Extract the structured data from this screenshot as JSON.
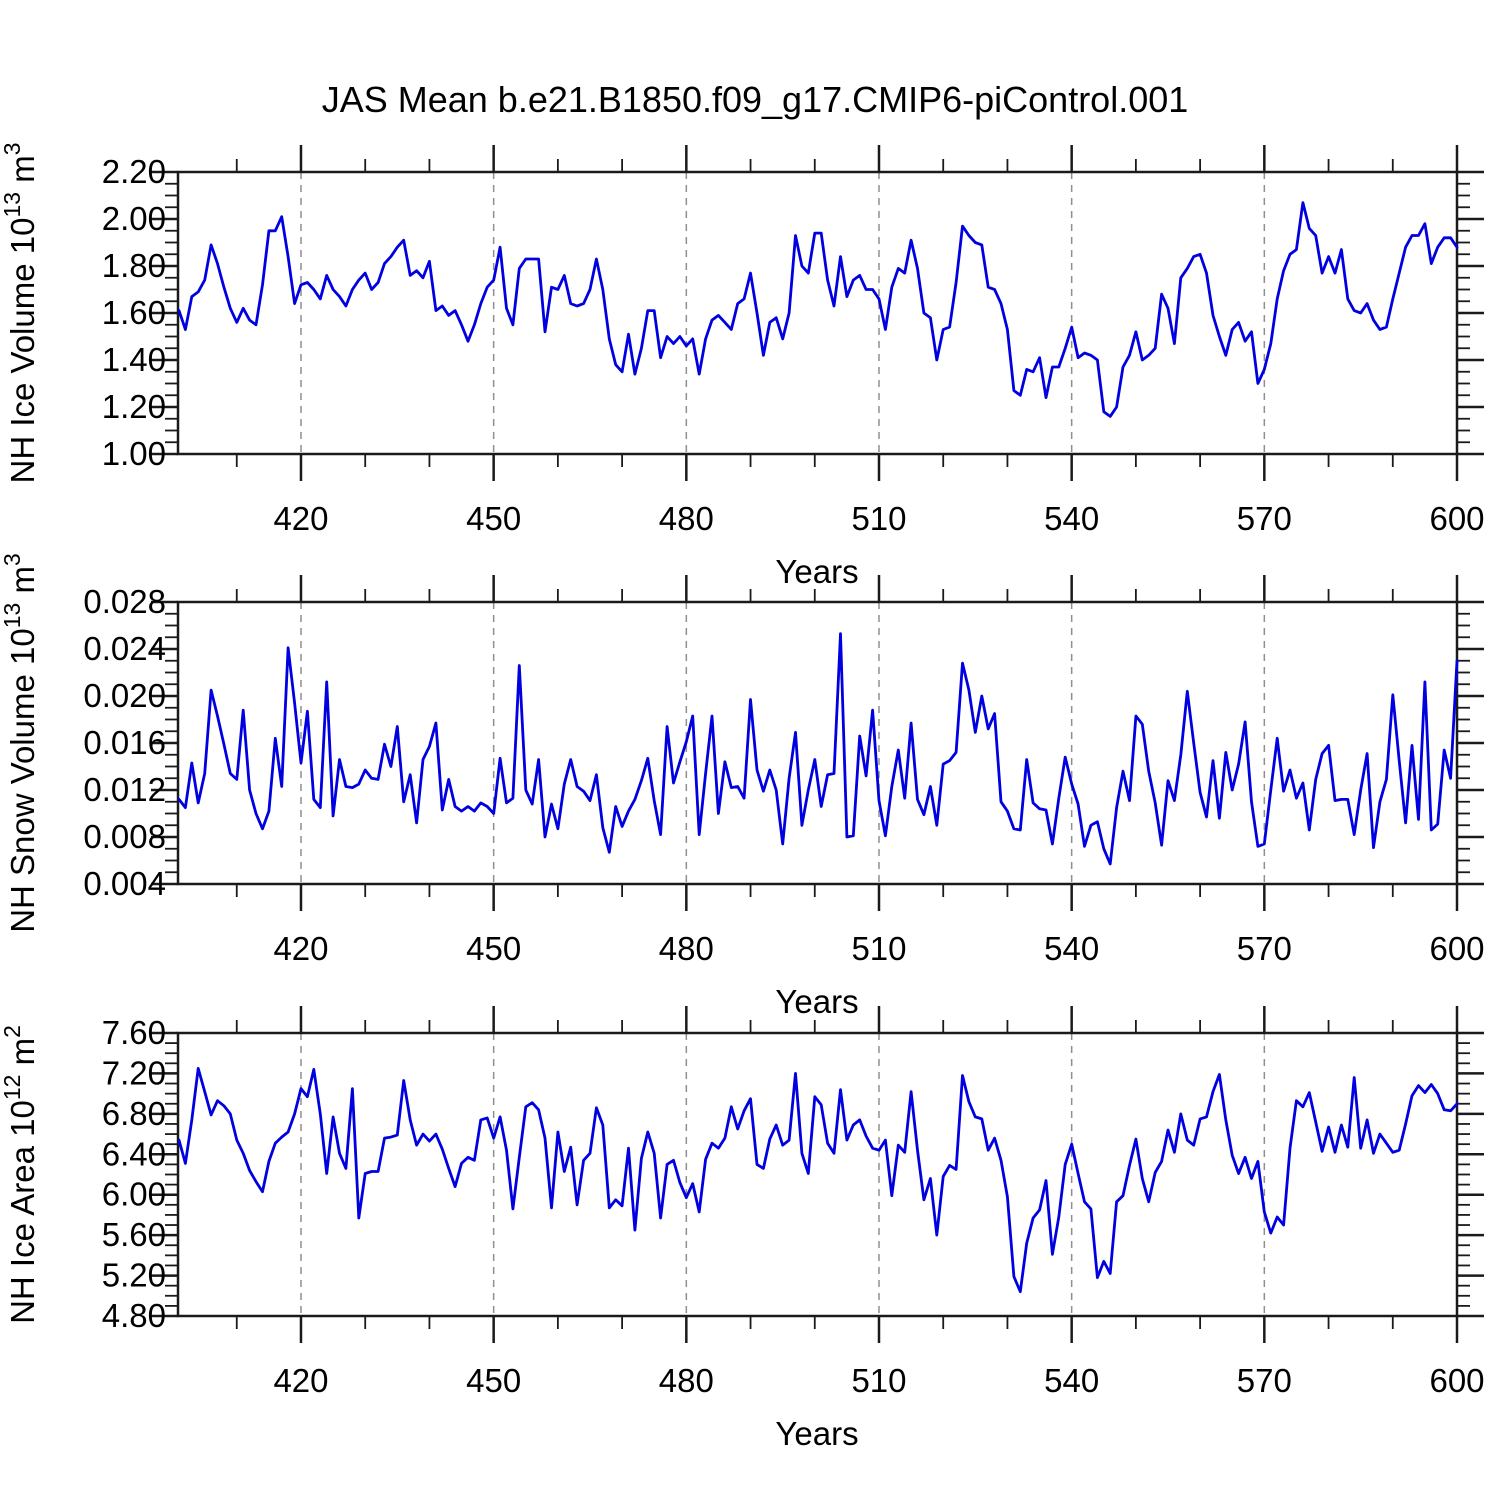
{
  "title": "JAS Mean b.e21.B1850.f09_g17.CMIP6-piControl.001",
  "style": {
    "line_color": "#0000e0",
    "grid_color": "#8f8f8f",
    "axis_color": "#1a1a1a",
    "background": "#ffffff"
  },
  "x_axis": {
    "label": "Years",
    "tick_labels": [
      "420",
      "450",
      "480",
      "510",
      "540",
      "570",
      "600"
    ],
    "tick_years": [
      420,
      450,
      480,
      510,
      540,
      570,
      600
    ],
    "grid_years": [
      420,
      450,
      480,
      510,
      540,
      570
    ],
    "minor_step": 10,
    "start_year": 401,
    "end_year": 600
  },
  "chart_data": [
    {
      "type": "line",
      "name": "nh-ice-volume",
      "ylabel": {
        "text": "NH Ice Volume",
        "scale_base": "10",
        "scale_exp": "13",
        "unit": "m",
        "unit_exp": "3"
      },
      "ylim": [
        1.0,
        2.2
      ],
      "ytick_labels": [
        "1.00",
        "1.20",
        "1.40",
        "1.60",
        "1.80",
        "2.00",
        "2.20"
      ],
      "ytick_values": [
        1.0,
        1.2,
        1.4,
        1.6,
        1.8,
        2.0,
        2.2
      ],
      "yminor_step": 0.05,
      "x_start": 401,
      "x_step": 1,
      "values": [
        1.61,
        1.53,
        1.67,
        1.69,
        1.74,
        1.89,
        1.81,
        1.71,
        1.62,
        1.56,
        1.62,
        1.57,
        1.55,
        1.72,
        1.95,
        1.95,
        2.01,
        1.84,
        1.64,
        1.72,
        1.73,
        1.7,
        1.66,
        1.76,
        1.7,
        1.67,
        1.63,
        1.7,
        1.74,
        1.77,
        1.7,
        1.73,
        1.81,
        1.84,
        1.88,
        1.91,
        1.76,
        1.78,
        1.75,
        1.82,
        1.61,
        1.63,
        1.59,
        1.61,
        1.55,
        1.48,
        1.55,
        1.64,
        1.71,
        1.74,
        1.88,
        1.62,
        1.55,
        1.79,
        1.83,
        1.83,
        1.83,
        1.52,
        1.71,
        1.7,
        1.76,
        1.64,
        1.63,
        1.64,
        1.7,
        1.83,
        1.7,
        1.49,
        1.38,
        1.35,
        1.51,
        1.34,
        1.45,
        1.61,
        1.61,
        1.41,
        1.5,
        1.47,
        1.5,
        1.46,
        1.49,
        1.34,
        1.49,
        1.57,
        1.59,
        1.56,
        1.53,
        1.64,
        1.66,
        1.77,
        1.6,
        1.42,
        1.56,
        1.58,
        1.49,
        1.6,
        1.93,
        1.8,
        1.77,
        1.94,
        1.94,
        1.74,
        1.63,
        1.84,
        1.67,
        1.74,
        1.76,
        1.7,
        1.7,
        1.66,
        1.53,
        1.71,
        1.79,
        1.77,
        1.91,
        1.79,
        1.6,
        1.58,
        1.4,
        1.53,
        1.54,
        1.73,
        1.97,
        1.93,
        1.9,
        1.89,
        1.71,
        1.7,
        1.64,
        1.53,
        1.27,
        1.25,
        1.36,
        1.35,
        1.41,
        1.24,
        1.37,
        1.37,
        1.45,
        1.54,
        1.41,
        1.43,
        1.42,
        1.4,
        1.18,
        1.16,
        1.2,
        1.37,
        1.42,
        1.52,
        1.4,
        1.42,
        1.45,
        1.68,
        1.62,
        1.47,
        1.75,
        1.79,
        1.84,
        1.85,
        1.77,
        1.59,
        1.5,
        1.42,
        1.53,
        1.56,
        1.48,
        1.52,
        1.3,
        1.36,
        1.47,
        1.66,
        1.78,
        1.85,
        1.87,
        2.07,
        1.96,
        1.93,
        1.77,
        1.84,
        1.77,
        1.87,
        1.66,
        1.61,
        1.6,
        1.64,
        1.57,
        1.53,
        1.54,
        1.66,
        1.77,
        1.88,
        1.93,
        1.93,
        1.98,
        1.81,
        1.88,
        1.92,
        1.92,
        1.88
      ]
    },
    {
      "type": "line",
      "name": "nh-snow-volume",
      "ylabel": {
        "text": "NH Snow Volume",
        "scale_base": "10",
        "scale_exp": "13",
        "unit": "m",
        "unit_exp": "3"
      },
      "ylim": [
        0.004,
        0.028
      ],
      "ytick_labels": [
        "0.004",
        "0.008",
        "0.012",
        "0.016",
        "0.020",
        "0.024",
        "0.028"
      ],
      "ytick_values": [
        0.004,
        0.008,
        0.012,
        0.016,
        0.02,
        0.024,
        0.028
      ],
      "yminor_step": 0.001,
      "x_start": 401,
      "x_step": 1,
      "values": [
        0.0112,
        0.0105,
        0.0143,
        0.0109,
        0.0134,
        0.0205,
        0.0183,
        0.0159,
        0.0134,
        0.0129,
        0.0188,
        0.012,
        0.01,
        0.0087,
        0.0102,
        0.0164,
        0.0123,
        0.0241,
        0.0194,
        0.0143,
        0.0187,
        0.0112,
        0.0105,
        0.0212,
        0.0098,
        0.0146,
        0.0123,
        0.0122,
        0.0125,
        0.0137,
        0.013,
        0.0129,
        0.0159,
        0.014,
        0.0174,
        0.011,
        0.0133,
        0.0092,
        0.0146,
        0.0157,
        0.0177,
        0.0103,
        0.0129,
        0.0106,
        0.0102,
        0.0106,
        0.0102,
        0.0109,
        0.0106,
        0.01,
        0.0147,
        0.0109,
        0.0113,
        0.0226,
        0.012,
        0.0108,
        0.0146,
        0.008,
        0.0108,
        0.0087,
        0.0125,
        0.0146,
        0.0123,
        0.0119,
        0.0111,
        0.0133,
        0.0088,
        0.0067,
        0.0106,
        0.0089,
        0.0102,
        0.0112,
        0.0128,
        0.0147,
        0.0111,
        0.0082,
        0.0174,
        0.0126,
        0.0144,
        0.0161,
        0.0183,
        0.0082,
        0.0134,
        0.0183,
        0.01,
        0.0144,
        0.0122,
        0.0123,
        0.0113,
        0.0197,
        0.0137,
        0.0119,
        0.0137,
        0.012,
        0.0074,
        0.013,
        0.0169,
        0.009,
        0.012,
        0.0146,
        0.0106,
        0.0133,
        0.0134,
        0.0253,
        0.008,
        0.0081,
        0.0166,
        0.0132,
        0.0188,
        0.0111,
        0.0081,
        0.0123,
        0.0154,
        0.0113,
        0.0177,
        0.0112,
        0.0099,
        0.0123,
        0.009,
        0.0142,
        0.0145,
        0.0152,
        0.0228,
        0.0205,
        0.0169,
        0.02,
        0.0172,
        0.0185,
        0.011,
        0.0102,
        0.0087,
        0.0086,
        0.0146,
        0.0109,
        0.0104,
        0.0103,
        0.0074,
        0.0113,
        0.0148,
        0.0125,
        0.0108,
        0.0072,
        0.009,
        0.0093,
        0.007,
        0.0057,
        0.0105,
        0.0136,
        0.0111,
        0.0183,
        0.0176,
        0.0136,
        0.0109,
        0.0073,
        0.0128,
        0.0111,
        0.015,
        0.0204,
        0.016,
        0.0118,
        0.0097,
        0.0145,
        0.0096,
        0.0152,
        0.012,
        0.0142,
        0.0178,
        0.011,
        0.0072,
        0.0074,
        0.012,
        0.0164,
        0.0119,
        0.0137,
        0.0113,
        0.0126,
        0.0086,
        0.0129,
        0.0151,
        0.0158,
        0.0111,
        0.0112,
        0.0112,
        0.0082,
        0.012,
        0.0151,
        0.0071,
        0.011,
        0.0129,
        0.0201,
        0.0145,
        0.0092,
        0.0158,
        0.0095,
        0.0212,
        0.0086,
        0.0091,
        0.0154,
        0.013,
        0.023
      ]
    },
    {
      "type": "line",
      "name": "nh-ice-area",
      "ylabel": {
        "text": "NH Ice Area",
        "scale_base": "10",
        "scale_exp": "12",
        "unit": "m",
        "unit_exp": "2"
      },
      "ylim": [
        4.8,
        7.6
      ],
      "ytick_labels": [
        "4.80",
        "5.20",
        "5.60",
        "6.00",
        "6.40",
        "6.80",
        "7.20",
        "7.60"
      ],
      "ytick_values": [
        4.8,
        5.2,
        5.6,
        6.0,
        6.4,
        6.8,
        7.2,
        7.6
      ],
      "yminor_step": 0.1,
      "x_start": 401,
      "x_step": 1,
      "values": [
        6.54,
        6.31,
        6.74,
        7.25,
        7.02,
        6.79,
        6.93,
        6.88,
        6.8,
        6.54,
        6.41,
        6.24,
        6.13,
        6.03,
        6.33,
        6.51,
        6.57,
        6.62,
        6.8,
        7.05,
        6.97,
        7.24,
        6.8,
        6.21,
        6.77,
        6.41,
        6.26,
        7.05,
        5.77,
        6.21,
        6.23,
        6.23,
        6.56,
        6.57,
        6.59,
        7.13,
        6.74,
        6.49,
        6.6,
        6.53,
        6.6,
        6.45,
        6.26,
        6.08,
        6.31,
        6.37,
        6.34,
        6.74,
        6.76,
        6.56,
        6.77,
        6.44,
        5.86,
        6.37,
        6.87,
        6.91,
        6.84,
        6.56,
        5.87,
        6.62,
        6.23,
        6.47,
        5.9,
        6.34,
        6.41,
        6.86,
        6.69,
        5.87,
        5.95,
        5.89,
        6.46,
        5.65,
        6.36,
        6.62,
        6.41,
        5.77,
        6.3,
        6.34,
        6.12,
        5.97,
        6.11,
        5.83,
        6.35,
        6.51,
        6.46,
        6.56,
        6.87,
        6.65,
        6.83,
        6.95,
        6.3,
        6.26,
        6.55,
        6.69,
        6.49,
        6.54,
        7.2,
        6.41,
        6.21,
        6.97,
        6.89,
        6.51,
        6.41,
        7.04,
        6.54,
        6.69,
        6.74,
        6.58,
        6.46,
        6.44,
        6.54,
        5.99,
        6.49,
        6.42,
        7.02,
        6.44,
        5.95,
        6.16,
        5.6,
        6.18,
        6.29,
        6.25,
        7.18,
        6.92,
        6.77,
        6.75,
        6.44,
        6.56,
        6.34,
        5.98,
        5.19,
        5.04,
        5.52,
        5.77,
        5.85,
        6.14,
        5.41,
        5.78,
        6.3,
        6.5,
        6.21,
        5.93,
        5.86,
        5.18,
        5.34,
        5.22,
        5.93,
        5.99,
        6.29,
        6.55,
        6.16,
        5.93,
        6.22,
        6.33,
        6.64,
        6.42,
        6.8,
        6.54,
        6.49,
        6.75,
        6.77,
        7.02,
        7.19,
        6.74,
        6.39,
        6.21,
        6.37,
        6.16,
        6.33,
        5.83,
        5.62,
        5.78,
        5.7,
        6.46,
        6.93,
        6.87,
        7.01,
        6.72,
        6.43,
        6.67,
        6.42,
        6.69,
        6.47,
        7.16,
        6.46,
        6.74,
        6.41,
        6.6,
        6.51,
        6.42,
        6.44,
        6.7,
        6.98,
        7.08,
        7.01,
        7.09,
        7.0,
        6.84,
        6.83,
        6.9
      ]
    }
  ]
}
